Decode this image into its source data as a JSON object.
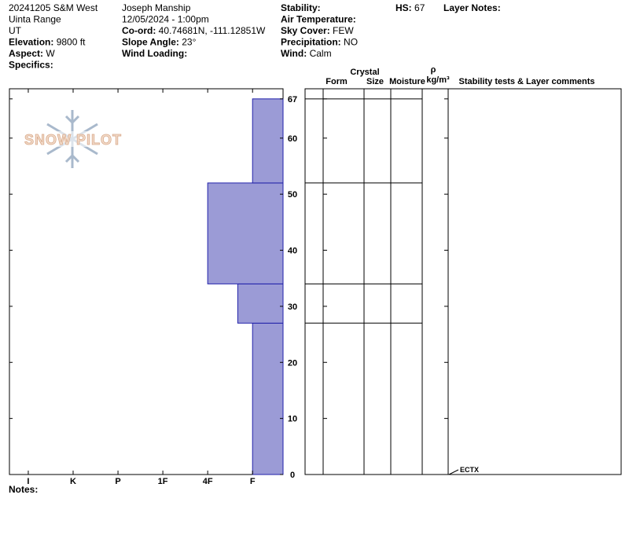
{
  "header": {
    "columns": [
      [
        {
          "value": "20241205 S&M West"
        },
        {
          "value": "Uinta Range"
        },
        {
          "value": "UT"
        },
        {
          "label": "Elevation:",
          "value": "9800 ft"
        },
        {
          "label": "Aspect:",
          "value": "W"
        },
        {
          "label": "Specifics:"
        }
      ],
      [
        {
          "value": "Joseph Manship"
        },
        {
          "value": "12/05/2024 - 1:00pm"
        },
        {
          "label": "Co-ord:",
          "value": "40.74681N, -111.12851W"
        },
        {
          "label": "Slope Angle:",
          "value": "23°"
        },
        {
          "label": "Wind Loading:"
        }
      ],
      [
        {
          "label": "Stability:"
        },
        {
          "label": "Air Temperature:"
        },
        {
          "label": "Sky Cover:",
          "value": "FEW"
        },
        {
          "label": "Precipitation:",
          "value": "NO"
        },
        {
          "label": "Wind:",
          "value": " Calm"
        }
      ],
      [
        {
          "label": "HS:",
          "value": "67"
        }
      ],
      [
        {
          "label": "Layer Notes:"
        }
      ]
    ]
  },
  "logo": "SNOW PILOT",
  "chart_data": {
    "type": "bar",
    "layers": [
      {
        "bottom": 0,
        "top": 27,
        "hardness": 1
      },
      {
        "bottom": 27,
        "top": 34,
        "hardness": 1.33
      },
      {
        "bottom": 34,
        "top": 52,
        "hardness": 2
      },
      {
        "bottom": 52,
        "top": 67,
        "hardness": 1
      }
    ],
    "color": "#9b9bd6",
    "xlim": [
      0.32,
      6.42
    ],
    "xticks": [
      {
        "value": 6,
        "label": "I"
      },
      {
        "value": 5,
        "label": "K"
      },
      {
        "value": 4,
        "label": "P"
      },
      {
        "value": 3,
        "label": "1F"
      },
      {
        "value": 2,
        "label": "4F"
      },
      {
        "value": 1,
        "label": "F"
      }
    ],
    "ylim": [
      0,
      68.8
    ],
    "yticks": [
      0,
      10,
      20,
      30,
      40,
      50,
      60,
      67
    ],
    "annotations": [
      {
        "depth": 0,
        "text": "ECTX"
      }
    ]
  },
  "layer_table": {
    "headers": [
      "Form",
      "Crystal",
      "Size",
      "Moisture",
      "ρ",
      "kg/m³",
      "Stability tests & Layer comments"
    ]
  },
  "notes": {
    "label": "Notes:"
  }
}
